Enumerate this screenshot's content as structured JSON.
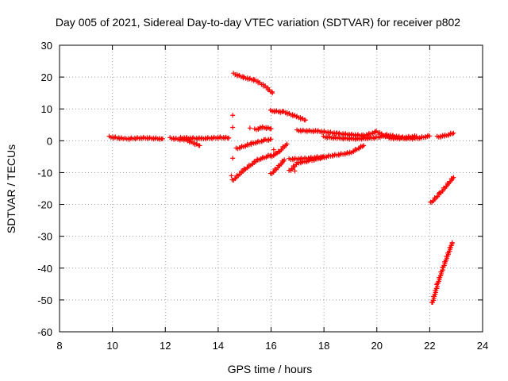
{
  "chart_data": {
    "type": "scatter",
    "title": "Day 005 of 2021, Sidereal Day-to-day VTEC variation (SDTVAR) for receiver p802",
    "xlabel": "GPS time / hours",
    "ylabel": "SDTVAR / TECUs",
    "xlim": [
      8,
      24
    ],
    "ylim": [
      -60,
      30
    ],
    "xticks": [
      8,
      10,
      12,
      14,
      16,
      18,
      20,
      22,
      24
    ],
    "yticks": [
      -60,
      -50,
      -40,
      -30,
      -20,
      -10,
      0,
      10,
      20,
      30
    ],
    "xtick_labels": [
      "8",
      "10",
      "12",
      "14",
      "16",
      "18",
      "20",
      "22",
      "24"
    ],
    "ytick_labels": [
      "-60",
      "-50",
      "-40",
      "-30",
      "-20",
      "-10",
      "0",
      "10",
      "20",
      "30"
    ],
    "grid": true,
    "marker": "+",
    "color": "#ff0000",
    "segments": [
      {
        "name": "arc-1",
        "points": [
          [
            9.9,
            1.2
          ],
          [
            10.5,
            0.6
          ],
          [
            11.2,
            0.9
          ],
          [
            11.9,
            0.6
          ]
        ]
      },
      {
        "name": "arc-2",
        "points": [
          [
            12.2,
            0.8
          ],
          [
            12.8,
            0.2
          ],
          [
            13.3,
            -1.5
          ]
        ]
      },
      {
        "name": "arc-3",
        "points": [
          [
            12.6,
            0.9
          ],
          [
            13.4,
            0.7
          ],
          [
            14.1,
            1.0
          ],
          [
            14.4,
            0.9
          ]
        ]
      },
      {
        "name": "arc-4",
        "points": [
          [
            14.6,
            21.0
          ],
          [
            15.0,
            19.8
          ],
          [
            15.4,
            19.0
          ],
          [
            15.8,
            17.0
          ],
          [
            16.05,
            15.0
          ]
        ]
      },
      {
        "name": "arc-5",
        "points": [
          [
            14.7,
            -2.5
          ],
          [
            15.3,
            -0.8
          ],
          [
            15.8,
            0.2
          ],
          [
            16.0,
            0.5
          ]
        ]
      },
      {
        "name": "arc-6",
        "points": [
          [
            14.55,
            -12.5
          ],
          [
            15.0,
            -9.0
          ],
          [
            15.5,
            -6.0
          ],
          [
            16.0,
            -4.5
          ]
        ]
      },
      {
        "name": "arc-7",
        "points": [
          [
            15.4,
            3.5
          ],
          [
            15.7,
            4.2
          ],
          [
            16.0,
            3.8
          ]
        ]
      },
      {
        "name": "arc-8",
        "points": [
          [
            16.0,
            9.4
          ],
          [
            16.5,
            9.0
          ],
          [
            17.0,
            7.5
          ],
          [
            17.3,
            6.5
          ]
        ]
      },
      {
        "name": "arc-9",
        "points": [
          [
            16.0,
            -10.5
          ],
          [
            16.3,
            -8.0
          ],
          [
            16.5,
            -6.0
          ]
        ]
      },
      {
        "name": "arc-10",
        "points": [
          [
            16.0,
            -5.0
          ],
          [
            16.3,
            -3.5
          ],
          [
            16.6,
            -1.0
          ]
        ]
      },
      {
        "name": "arc-11",
        "points": [
          [
            16.7,
            -9.5
          ],
          [
            17.0,
            -7.0
          ],
          [
            17.5,
            -6.2
          ],
          [
            18.2,
            -4.8
          ],
          [
            19.0,
            -3.8
          ],
          [
            19.5,
            -1.5
          ]
        ]
      },
      {
        "name": "arc-12",
        "points": [
          [
            16.7,
            -5.8
          ],
          [
            17.3,
            -5.6
          ],
          [
            18.0,
            -5.0
          ]
        ]
      },
      {
        "name": "arc-13",
        "points": [
          [
            17.0,
            3.2
          ],
          [
            17.8,
            3.0
          ],
          [
            18.6,
            2.2
          ],
          [
            19.5,
            1.6
          ],
          [
            20.0,
            2.8
          ],
          [
            20.5,
            0.8
          ],
          [
            21.5,
            0.7
          ],
          [
            22.0,
            1.5
          ]
        ]
      },
      {
        "name": "arc-14",
        "points": [
          [
            18.0,
            1.2
          ],
          [
            18.6,
            0.8
          ],
          [
            19.3,
            0.6
          ],
          [
            20.0,
            1.0
          ],
          [
            20.4,
            1.8
          ],
          [
            21.0,
            1.0
          ],
          [
            21.5,
            1.4
          ]
        ]
      },
      {
        "name": "arc-15",
        "points": [
          [
            22.3,
            1.2
          ],
          [
            22.6,
            1.6
          ],
          [
            22.9,
            2.4
          ]
        ]
      },
      {
        "name": "arc-16",
        "points": [
          [
            22.05,
            -19.5
          ],
          [
            22.4,
            -16.5
          ],
          [
            22.9,
            -11.5
          ]
        ]
      },
      {
        "name": "arc-17",
        "points": [
          [
            22.1,
            -51.0
          ],
          [
            22.3,
            -45.0
          ],
          [
            22.5,
            -40.0
          ],
          [
            22.7,
            -35.5
          ],
          [
            22.85,
            -32.0
          ]
        ]
      },
      {
        "name": "isolated",
        "points": [
          [
            14.55,
            8.0
          ],
          [
            14.55,
            4.2
          ],
          [
            14.55,
            -5.5
          ],
          [
            14.5,
            -11.0
          ],
          [
            16.1,
            -2.8
          ],
          [
            16.9,
            -9.5
          ],
          [
            15.2,
            4.0
          ]
        ]
      }
    ]
  }
}
